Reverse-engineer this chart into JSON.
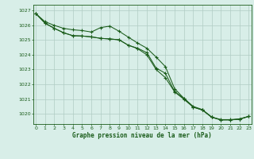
{
  "title": "Graphe pression niveau de la mer (hPa)",
  "bg_color": "#d8eee8",
  "grid_color": "#b0ccc4",
  "line_color": "#1a5c1a",
  "x_ticks": [
    0,
    1,
    2,
    3,
    4,
    5,
    6,
    7,
    8,
    9,
    10,
    11,
    12,
    13,
    14,
    15,
    16,
    17,
    18,
    19,
    20,
    21,
    22,
    23
  ],
  "ylim": [
    1019.3,
    1027.4
  ],
  "yticks": [
    1020,
    1021,
    1022,
    1023,
    1024,
    1025,
    1026,
    1027
  ],
  "series_A": [
    1026.8,
    1026.25,
    1026.0,
    1025.8,
    1025.7,
    1025.65,
    1025.55,
    1025.85,
    1025.95,
    1025.6,
    1025.2,
    1024.8,
    1024.45,
    1023.85,
    1023.2,
    1021.7,
    1021.05,
    1020.5,
    1020.28,
    1019.78,
    1019.6,
    1019.6,
    1019.65,
    1019.82
  ],
  "series_B": [
    1026.8,
    1026.15,
    1025.8,
    1025.5,
    1025.3,
    1025.28,
    1025.22,
    1025.12,
    1025.08,
    1025.02,
    1024.65,
    1024.45,
    1024.15,
    1023.1,
    1022.75,
    1021.5,
    1021.05,
    1020.45,
    1020.25,
    1019.76,
    1019.58,
    1019.58,
    1019.62,
    1019.82
  ],
  "series_C": [
    1026.8,
    1026.15,
    1025.8,
    1025.5,
    1025.3,
    1025.28,
    1025.22,
    1025.12,
    1025.08,
    1025.02,
    1024.65,
    1024.42,
    1024.0,
    1023.0,
    1022.45,
    1021.48,
    1020.98,
    1020.45,
    1020.25,
    1019.76,
    1019.58,
    1019.58,
    1019.62,
    1019.82
  ]
}
